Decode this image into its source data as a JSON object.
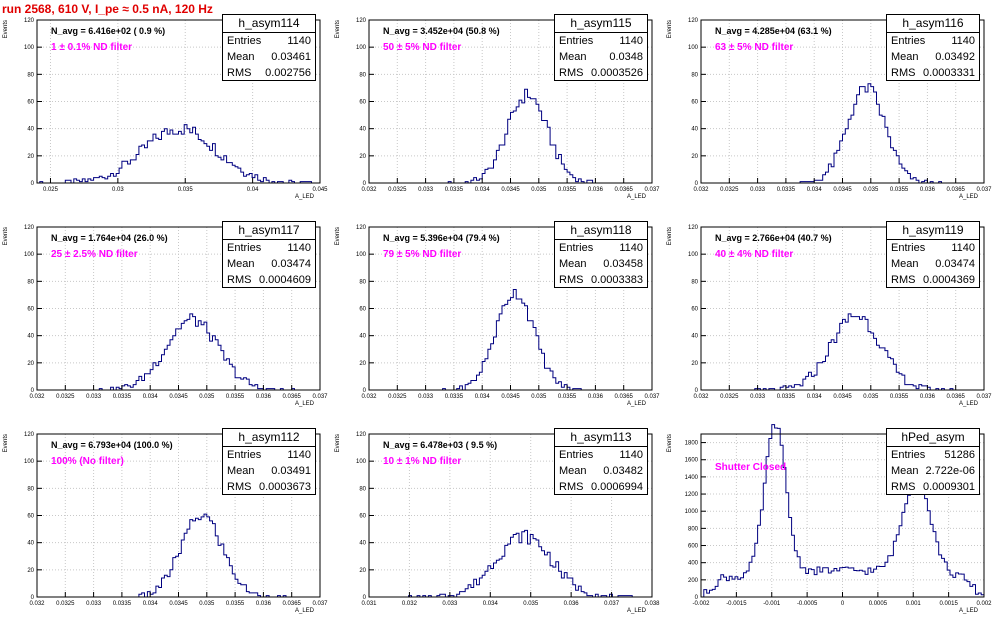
{
  "page_title": "run 2568,   610 V, I_pe ≈ 0.5 nA, 120 Hz",
  "colors": {
    "title": "#e00000",
    "histogram": "#000080",
    "annotation": "#ff00ff",
    "grid": "#c8c8c8"
  },
  "chart_data": [
    {
      "type": "bar",
      "name": "h_asym114",
      "ylabel": "Events",
      "xlabel": "A_LED",
      "xlim": [
        0.024,
        0.045
      ],
      "ylim": [
        0,
        120
      ],
      "grid": true,
      "x_ticks": [
        0.025,
        0.03,
        0.035,
        0.04,
        0.045
      ],
      "x_tick_labels": [
        "0.025",
        "0.03",
        "0.035",
        "0.04",
        "0.045"
      ],
      "y_ticks": [
        0,
        20,
        40,
        60,
        80,
        100,
        120
      ],
      "stats": {
        "entries": "1140",
        "mean": "0.03461",
        "rms": "0.002756"
      },
      "navg_text": "N_avg = 6.416e+02 ( 0.9 %)",
      "filter_text": "1 ± 0.1% ND filter",
      "distribution": {
        "mean": 0.03461,
        "rms": 0.002756,
        "peak": 40,
        "bins": 100
      }
    },
    {
      "type": "bar",
      "name": "h_asym115",
      "ylabel": "Events",
      "xlabel": "A_LED",
      "xlim": [
        0.032,
        0.037
      ],
      "ylim": [
        0,
        120
      ],
      "grid": true,
      "x_ticks": [
        0.032,
        0.0325,
        0.033,
        0.0335,
        0.034,
        0.0345,
        0.035,
        0.0355,
        0.036,
        0.0365,
        0.037
      ],
      "x_tick_labels": [
        "0.032",
        "0.0325",
        "0.033",
        "0.0335",
        "0.034",
        "0.0345",
        "0.035",
        "0.0355",
        "0.036",
        "0.0365",
        "0.037"
      ],
      "y_ticks": [
        0,
        20,
        40,
        60,
        80,
        100,
        120
      ],
      "stats": {
        "entries": "1140",
        "mean": "0.0348",
        "rms": "0.0003526"
      },
      "navg_text": "N_avg = 3.452e+04 (50.8 %)",
      "filter_text": "50 ± 5% ND filter",
      "distribution": {
        "mean": 0.0348,
        "rms": 0.0003526,
        "peak": 65,
        "bins": 100
      }
    },
    {
      "type": "bar",
      "name": "h_asym116",
      "ylabel": "Events",
      "xlabel": "A_LED",
      "xlim": [
        0.032,
        0.037
      ],
      "ylim": [
        0,
        120
      ],
      "grid": true,
      "x_ticks": [
        0.032,
        0.0325,
        0.033,
        0.0335,
        0.034,
        0.0345,
        0.035,
        0.0355,
        0.036,
        0.0365,
        0.037
      ],
      "x_tick_labels": [
        "0.032",
        "0.0325",
        "0.033",
        "0.0335",
        "0.034",
        "0.0345",
        "0.035",
        "0.0355",
        "0.036",
        "0.0365",
        "0.037"
      ],
      "y_ticks": [
        0,
        20,
        40,
        60,
        80,
        100,
        120
      ],
      "stats": {
        "entries": "1140",
        "mean": "0.03492",
        "rms": "0.0003331"
      },
      "navg_text": "N_avg = 4.285e+04 (63.1 %)",
      "filter_text": "63 ± 5% ND filter",
      "distribution": {
        "mean": 0.03492,
        "rms": 0.0003331,
        "peak": 70,
        "bins": 100
      }
    },
    {
      "type": "bar",
      "name": "h_asym117",
      "ylabel": "Events",
      "xlabel": "A_LED",
      "xlim": [
        0.032,
        0.037
      ],
      "ylim": [
        0,
        120
      ],
      "grid": true,
      "x_ticks": [
        0.032,
        0.0325,
        0.033,
        0.0335,
        0.034,
        0.0345,
        0.035,
        0.0355,
        0.036,
        0.0365,
        0.037
      ],
      "x_tick_labels": [
        "0.032",
        "0.0325",
        "0.033",
        "0.0335",
        "0.034",
        "0.0345",
        "0.035",
        "0.0355",
        "0.036",
        "0.0365",
        "0.037"
      ],
      "y_ticks": [
        0,
        20,
        40,
        60,
        80,
        100,
        120
      ],
      "stats": {
        "entries": "1140",
        "mean": "0.03474",
        "rms": "0.0004609"
      },
      "navg_text": "N_avg = 1.764e+04 (26.0 %)",
      "filter_text": "25 ± 2.5% ND filter",
      "distribution": {
        "mean": 0.03474,
        "rms": 0.0004609,
        "peak": 52,
        "bins": 100
      }
    },
    {
      "type": "bar",
      "name": "h_asym118",
      "ylabel": "Events",
      "xlabel": "A_LED",
      "xlim": [
        0.032,
        0.037
      ],
      "ylim": [
        0,
        120
      ],
      "grid": true,
      "x_ticks": [
        0.032,
        0.0325,
        0.033,
        0.0335,
        0.034,
        0.0345,
        0.035,
        0.0355,
        0.036,
        0.0365,
        0.037
      ],
      "x_tick_labels": [
        "0.032",
        "0.0325",
        "0.033",
        "0.0335",
        "0.034",
        "0.0345",
        "0.035",
        "0.0355",
        "0.036",
        "0.0365",
        "0.037"
      ],
      "y_ticks": [
        0,
        20,
        40,
        60,
        80,
        100,
        120
      ],
      "stats": {
        "entries": "1140",
        "mean": "0.03458",
        "rms": "0.0003383"
      },
      "navg_text": "N_avg = 5.396e+04 (79.4 %)",
      "filter_text": "79 ± 5% ND filter",
      "distribution": {
        "mean": 0.03458,
        "rms": 0.0003383,
        "peak": 72,
        "bins": 100
      }
    },
    {
      "type": "bar",
      "name": "h_asym119",
      "ylabel": "Events",
      "xlabel": "A_LED",
      "xlim": [
        0.032,
        0.037
      ],
      "ylim": [
        0,
        120
      ],
      "grid": true,
      "x_ticks": [
        0.032,
        0.0325,
        0.033,
        0.0335,
        0.034,
        0.0345,
        0.035,
        0.0355,
        0.036,
        0.0365,
        0.037
      ],
      "x_tick_labels": [
        "0.032",
        "0.0325",
        "0.033",
        "0.0335",
        "0.034",
        "0.0345",
        "0.035",
        "0.0355",
        "0.036",
        "0.0365",
        "0.037"
      ],
      "y_ticks": [
        0,
        20,
        40,
        60,
        80,
        100,
        120
      ],
      "stats": {
        "entries": "1140",
        "mean": "0.03474",
        "rms": "0.0004369"
      },
      "navg_text": "N_avg = 2.766e+04 (40.7 %)",
      "filter_text": "40 ± 4% ND filter",
      "distribution": {
        "mean": 0.03474,
        "rms": 0.0004369,
        "peak": 55,
        "bins": 100
      }
    },
    {
      "type": "bar",
      "name": "h_asym112",
      "ylabel": "Events",
      "xlabel": "A_LED",
      "xlim": [
        0.032,
        0.037
      ],
      "ylim": [
        0,
        120
      ],
      "grid": true,
      "x_ticks": [
        0.032,
        0.0325,
        0.033,
        0.0335,
        0.034,
        0.0345,
        0.035,
        0.0355,
        0.036,
        0.0365,
        0.037
      ],
      "x_tick_labels": [
        "0.032",
        "0.0325",
        "0.033",
        "0.0335",
        "0.034",
        "0.0345",
        "0.035",
        "0.0355",
        "0.036",
        "0.0365",
        "0.037"
      ],
      "y_ticks": [
        0,
        20,
        40,
        60,
        80,
        100,
        120
      ],
      "stats": {
        "entries": "1140",
        "mean": "0.03491",
        "rms": "0.0003673"
      },
      "navg_text": "N_avg = 6.793e+04 (100.0 %)",
      "filter_text": "100% (No filter)",
      "distribution": {
        "mean": 0.03491,
        "rms": 0.0003673,
        "peak": 60,
        "bins": 100
      }
    },
    {
      "type": "bar",
      "name": "h_asym113",
      "ylabel": "Events",
      "xlabel": "A_LED",
      "xlim": [
        0.031,
        0.038
      ],
      "ylim": [
        0,
        120
      ],
      "grid": true,
      "x_ticks": [
        0.031,
        0.032,
        0.033,
        0.034,
        0.035,
        0.036,
        0.037,
        0.038
      ],
      "x_tick_labels": [
        "0.031",
        "0.032",
        "0.033",
        "0.034",
        "0.035",
        "0.036",
        "0.037",
        "0.038"
      ],
      "y_ticks": [
        0,
        20,
        40,
        60,
        80,
        100,
        120
      ],
      "stats": {
        "entries": "1140",
        "mean": "0.03482",
        "rms": "0.0006994"
      },
      "navg_text": "N_avg = 6.478e+03 ( 9.5 %)",
      "filter_text": "10 ± 1% ND filter",
      "distribution": {
        "mean": 0.03482,
        "rms": 0.0006994,
        "peak": 45,
        "bins": 100
      }
    },
    {
      "type": "bar",
      "name": "hPed_asym",
      "ylabel": "Events",
      "xlabel": "A_LED",
      "xlim": [
        -0.002,
        0.002
      ],
      "ylim": [
        0,
        1900
      ],
      "grid": true,
      "x_ticks": [
        -0.002,
        -0.0015,
        -0.001,
        -0.0005,
        0,
        0.0005,
        0.001,
        0.0015,
        0.002
      ],
      "x_tick_labels": [
        "-0.002",
        "-0.0015",
        "-0.001",
        "-0.0005",
        "0",
        "0.0005",
        "0.001",
        "0.0015",
        "0.002"
      ],
      "y_ticks": [
        0,
        200,
        400,
        600,
        800,
        1000,
        1200,
        1400,
        1600,
        1800
      ],
      "stats": {
        "entries": "51286",
        "mean": "2.722e-06",
        "rms": "0.0009301"
      },
      "navg_text": "",
      "filter_text": "Shutter Closed",
      "distribution": {
        "peaks": [
          {
            "center": -0.00095,
            "height": 1750,
            "width": 0.00015
          },
          {
            "center": 0.00105,
            "height": 1100,
            "width": 0.0002
          }
        ],
        "floor": 260,
        "bins": 100
      }
    }
  ]
}
